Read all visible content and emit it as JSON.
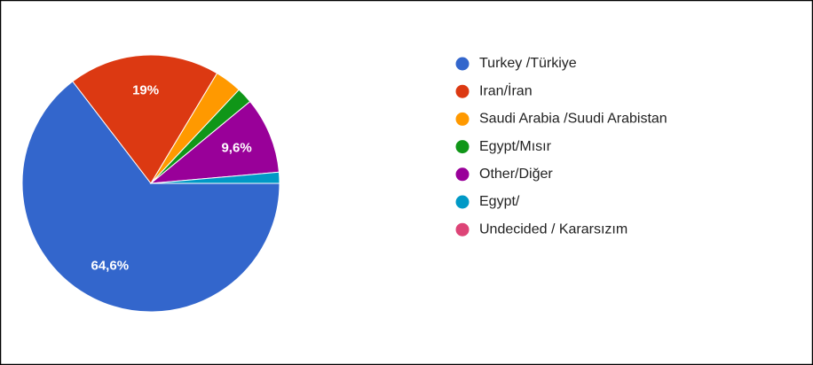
{
  "chart_data": {
    "type": "pie",
    "categories": [
      "Turkey /Türkiye",
      "Iran/İran",
      "Saudi Arabia /Suudi Arabistan",
      "Egypt/Mısır",
      "Other/Diğer",
      "Egypt/",
      "Undecided / Kararsızım"
    ],
    "values": [
      64.6,
      19,
      3.4,
      2.0,
      9.6,
      1.4,
      0
    ],
    "value_labels": [
      "64,6%",
      "19%",
      null,
      null,
      "9,6%",
      null,
      null
    ],
    "colors": [
      "#3366cc",
      "#dc3912",
      "#ff9900",
      "#109618",
      "#990099",
      "#0099c6",
      "#dd4477"
    ],
    "legend": "right"
  }
}
